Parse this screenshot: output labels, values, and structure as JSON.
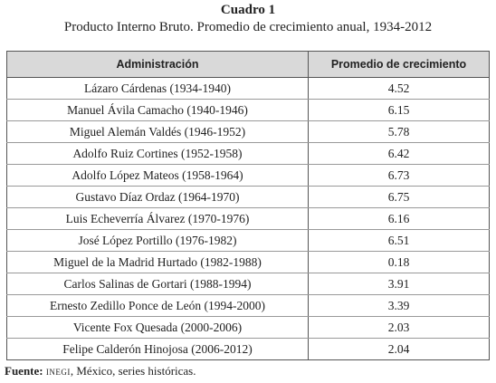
{
  "header": {
    "title": "Cuadro 1",
    "subtitle": "Producto Interno Bruto. Promedio de crecimiento anual, 1934-2012"
  },
  "table": {
    "columns": [
      "Administración",
      "Promedio de crecimiento"
    ],
    "rows": [
      [
        "Lázaro Cárdenas (1934-1940)",
        4.52
      ],
      [
        "Manuel Ávila Camacho (1940-1946)",
        6.15
      ],
      [
        "Miguel Alemán Valdés (1946-1952)",
        5.78
      ],
      [
        "Adolfo Ruiz Cortines (1952-1958)",
        6.42
      ],
      [
        "Adolfo López Mateos (1958-1964)",
        6.73
      ],
      [
        "Gustavo Díaz Ordaz (1964-1970)",
        6.75
      ],
      [
        "Luis Echeverría Álvarez (1970-1976)",
        6.16
      ],
      [
        "José López Portillo (1976-1982)",
        6.51
      ],
      [
        "Miguel de la Madrid Hurtado (1982-1988)",
        0.18
      ],
      [
        "Carlos Salinas de Gortari (1988-1994)",
        3.91
      ],
      [
        "Ernesto Zedillo Ponce de León (1994-2000)",
        3.39
      ],
      [
        "Vicente Fox Quesada (2000-2006)",
        2.03
      ],
      [
        "Felipe Calderón Hinojosa (2006-2012)",
        2.04
      ]
    ]
  },
  "footer": {
    "label": "Fuente:",
    "source": "inegi",
    "text": ", México, series históricas."
  }
}
